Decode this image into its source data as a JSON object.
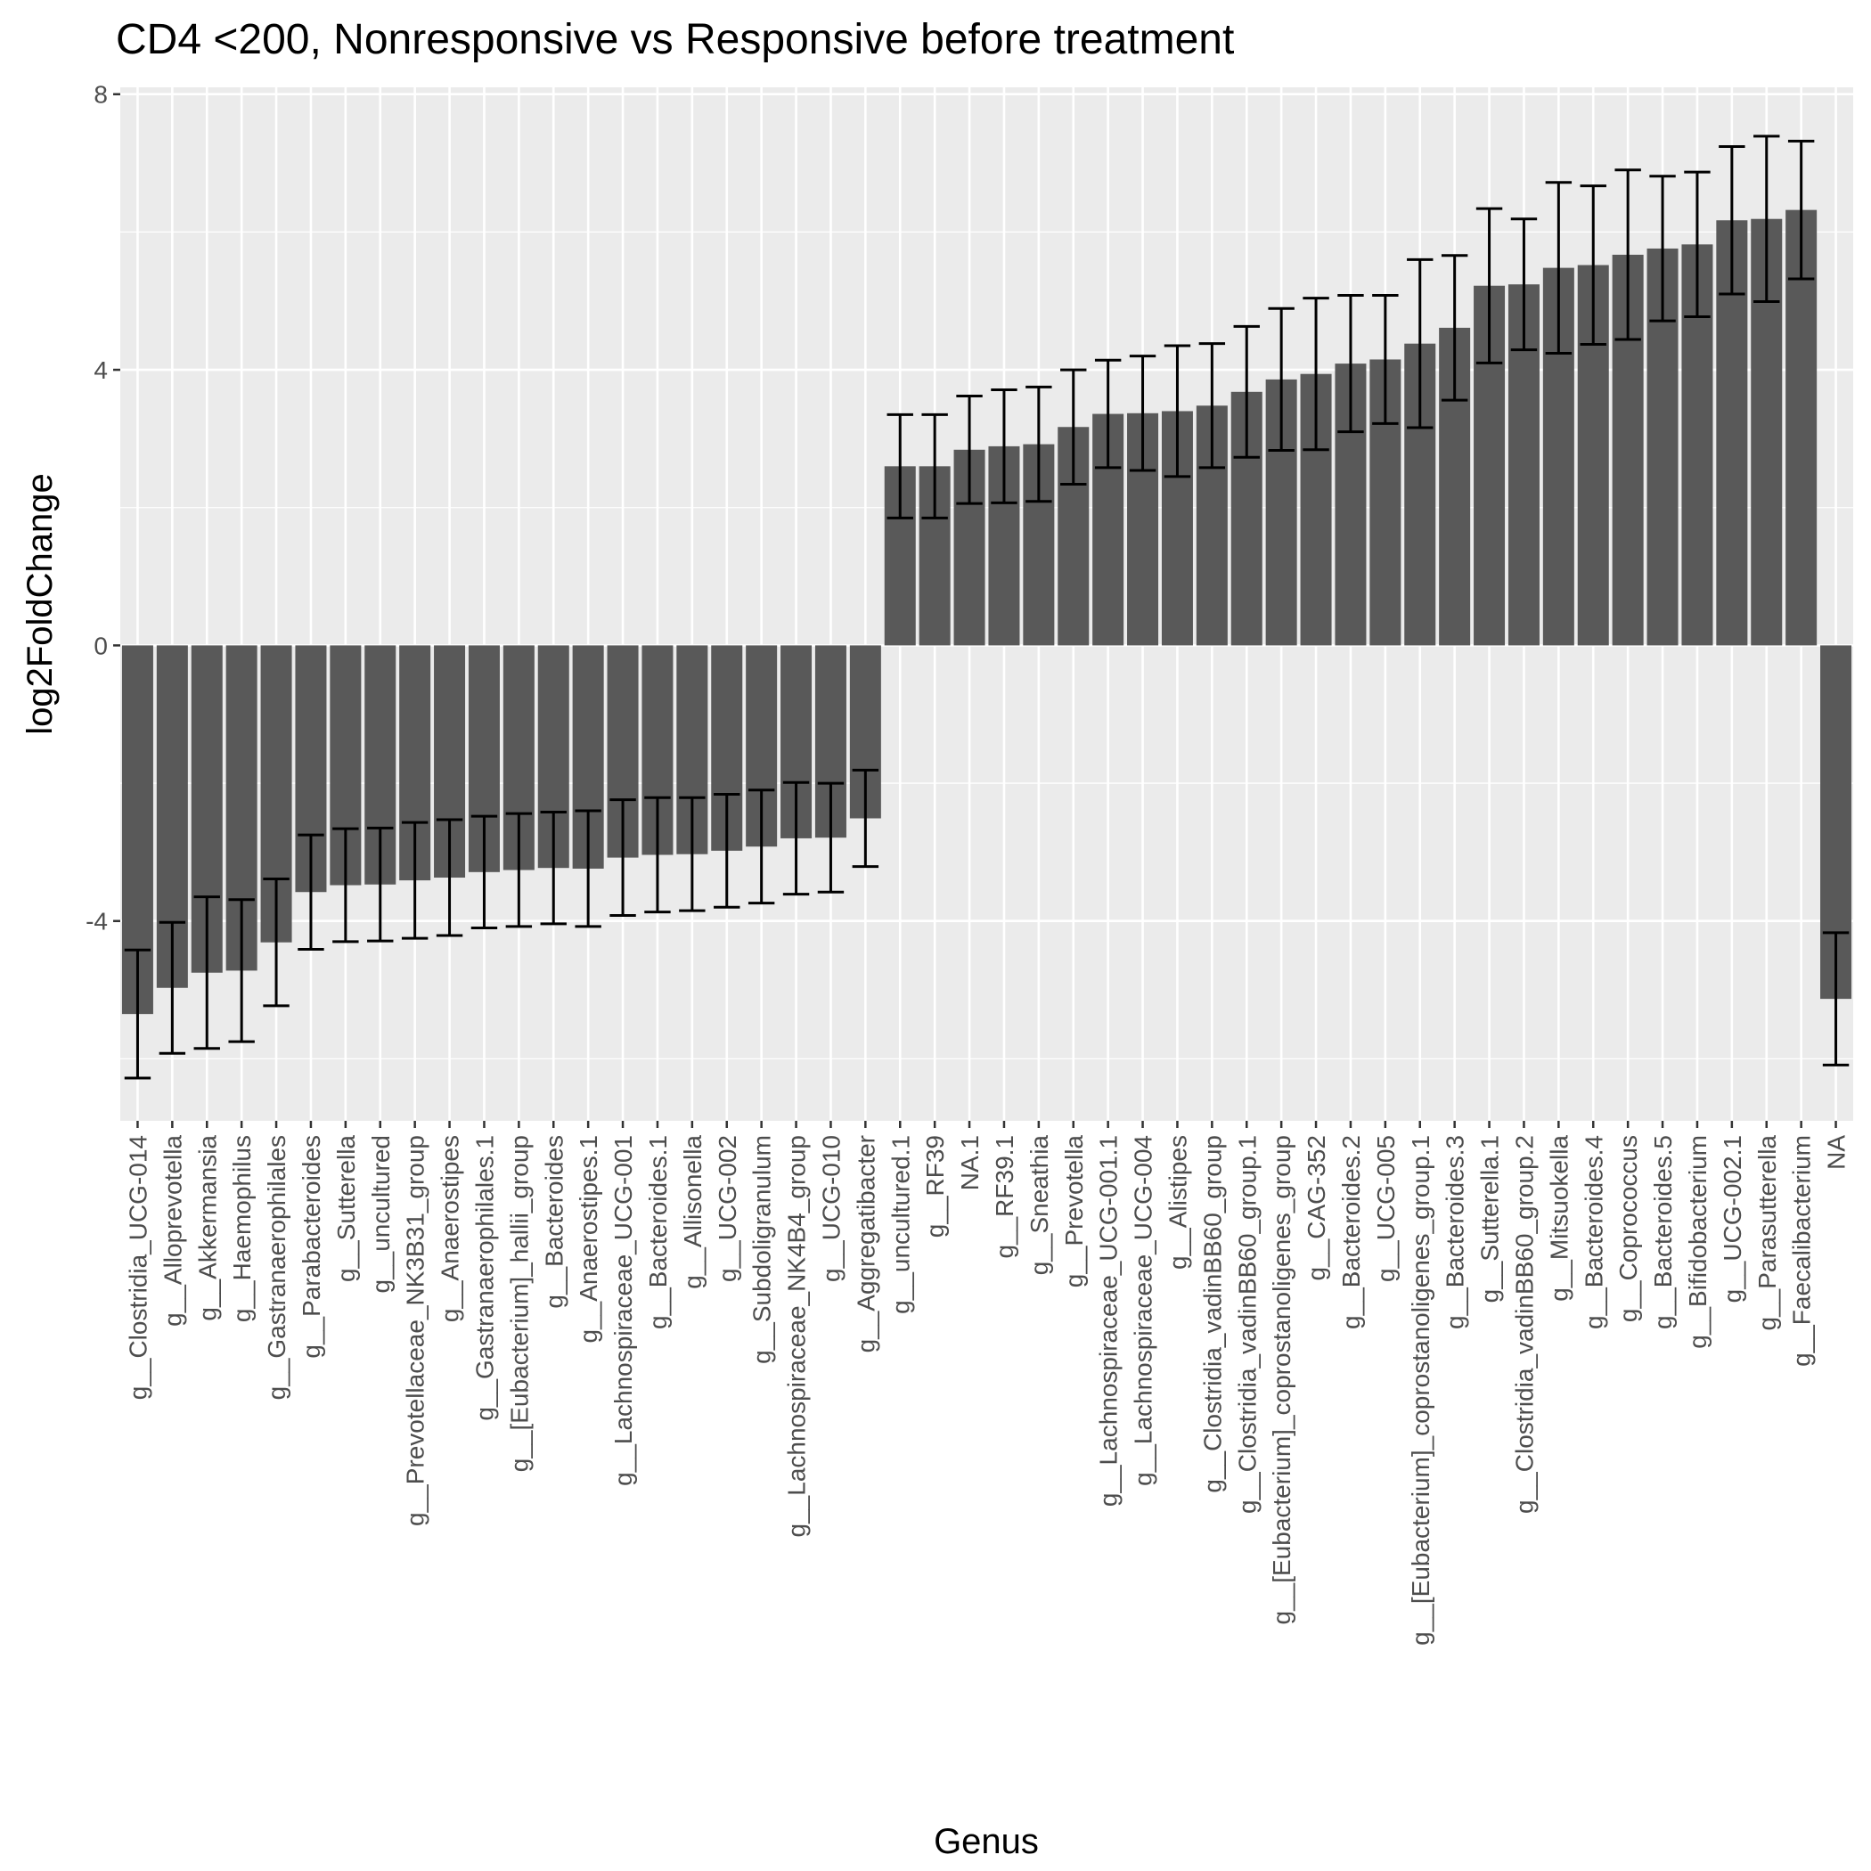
{
  "chart_data": {
    "type": "bar",
    "title": "CD4 <200, Nonresponsive vs Responsive before treatment",
    "xlabel": "Genus",
    "ylabel": "log2FoldChange",
    "ylim": [
      -6.9,
      8.1
    ],
    "yticks": [
      -4,
      0,
      4,
      8
    ],
    "grid": true,
    "background": "#ebebeb",
    "bar_color": "#595959",
    "errorbar_color": "#000000",
    "categories": [
      "g__Clostridia_UCG-014",
      "g__Alloprevotella",
      "g__Akkermansia",
      "g__Haemophilus",
      "g__Gastranaerophilales",
      "g__Parabacteroides",
      "g__Sutterella",
      "g__uncultured",
      "g__Prevotellaceae_NK3B31_group",
      "g__Anaerostipes",
      "g__Gastranaerophilales.1",
      "g__[Eubacterium]_hallii_group",
      "g__Bacteroides",
      "g__Anaerostipes.1",
      "g__Lachnospiraceae_UCG-001",
      "g__Bacteroides.1",
      "g__Allisonella",
      "g__UCG-002",
      "g__Subdoligranulum",
      "g__Lachnospiraceae_NK4B4_group",
      "g__UCG-010",
      "g__Aggregatibacter",
      "g__uncultured.1",
      "g__RF39",
      "NA.1",
      "g__RF39.1",
      "g__Sneathia",
      "g__Prevotella",
      "g__Lachnospiraceae_UCG-001.1",
      "g__Lachnospiraceae_UCG-004",
      "g__Alistipes",
      "g__Clostridia_vadinBB60_group",
      "g__Clostridia_vadinBB60_group.1",
      "g__[Eubacterium]_coprostanoligenes_group",
      "g__CAG-352",
      "g__Bacteroides.2",
      "g__UCG-005",
      "g__[Eubacterium]_coprostanoligenes_group.1",
      "g__Bacteroides.3",
      "g__Sutterella.1",
      "g__Clostridia_vadinBB60_group.2",
      "g__Mitsuokella",
      "g__Bacteroides.4",
      "g__Coprococcus",
      "g__Bacteroides.5",
      "g__Bifidobacterium",
      "g__UCG-002.1",
      "g__Parasutterella",
      "g__Faecalibacterium",
      "NA"
    ],
    "values": [
      -5.35,
      -4.97,
      -4.75,
      -4.72,
      -4.31,
      -3.58,
      -3.48,
      -3.47,
      -3.41,
      -3.37,
      -3.29,
      -3.26,
      -3.23,
      -3.24,
      -3.08,
      -3.04,
      -3.03,
      -2.98,
      -2.92,
      -2.8,
      -2.79,
      -2.51,
      2.6,
      2.6,
      2.84,
      2.89,
      2.92,
      3.17,
      3.36,
      3.37,
      3.4,
      3.48,
      3.68,
      3.86,
      3.94,
      4.09,
      4.15,
      4.38,
      4.61,
      5.22,
      5.24,
      5.48,
      5.52,
      5.67,
      5.76,
      5.82,
      6.17,
      6.19,
      6.32,
      -5.13
    ],
    "error": [
      0.93,
      0.95,
      1.1,
      1.03,
      0.92,
      0.83,
      0.82,
      0.82,
      0.84,
      0.84,
      0.81,
      0.82,
      0.81,
      0.84,
      0.84,
      0.83,
      0.82,
      0.82,
      0.82,
      0.81,
      0.79,
      0.7,
      0.75,
      0.75,
      0.78,
      0.82,
      0.83,
      0.83,
      0.78,
      0.83,
      0.95,
      0.9,
      0.95,
      1.03,
      1.1,
      0.99,
      0.93,
      1.22,
      1.05,
      1.12,
      0.95,
      1.24,
      1.15,
      1.23,
      1.05,
      1.05,
      1.07,
      1.2,
      1.0,
      0.96
    ]
  }
}
